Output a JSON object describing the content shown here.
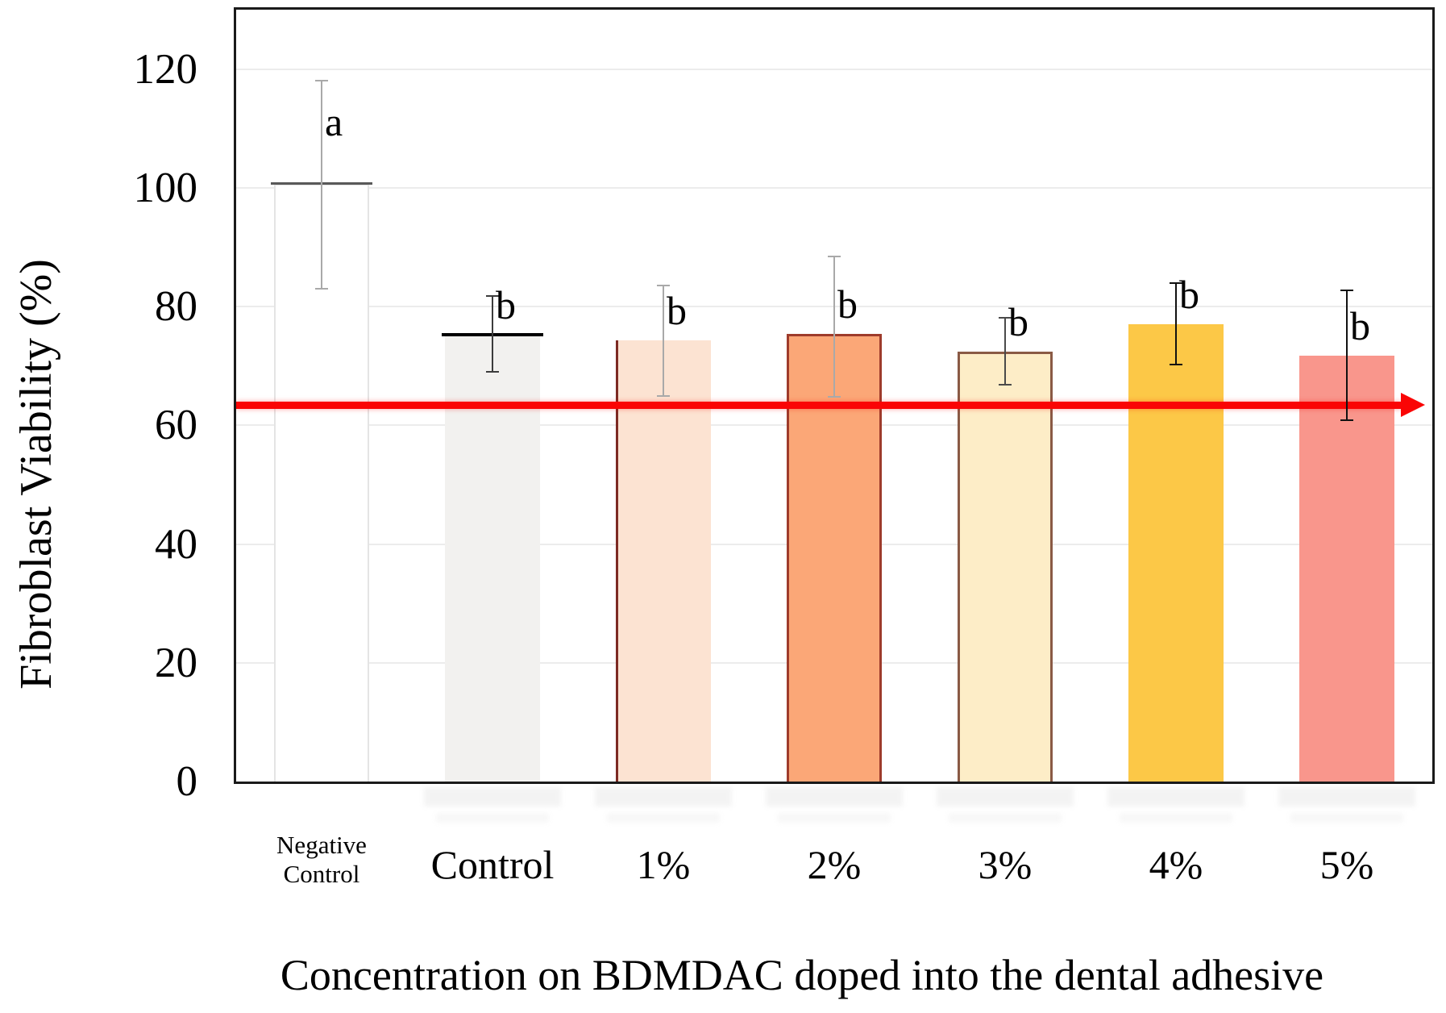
{
  "chart_data": {
    "type": "bar",
    "title": "",
    "ylabel": "Fibroblast Viability (%)",
    "xlabel": "Concentration on BDMDAC doped into the dental adhesive",
    "ylim": [
      0,
      130
    ],
    "yticks": [
      0,
      20,
      40,
      60,
      80,
      100,
      120
    ],
    "grid": "horizontal-light",
    "legend": "none",
    "reference_line": {
      "value": 63.5,
      "color": "#fa0505",
      "shape": "horizontal-arrow-right"
    },
    "categories": [
      "Negative Control",
      "Control",
      "1%",
      "2%",
      "3%",
      "4%",
      "5%"
    ],
    "bars": [
      {
        "category": "Negative Control",
        "label_lines": [
          "Negative",
          "Control"
        ],
        "small_label": true,
        "value": 100.6,
        "err_low": 83.0,
        "err_high": 118.0,
        "sig_letter": "a",
        "fill": "#ffffff",
        "outline": "#e4e4e4",
        "outline_style": "faint-full",
        "mean_marker_color": "#595959",
        "err_color": "#a9a9a9"
      },
      {
        "category": "Control",
        "label_lines": [
          "Control"
        ],
        "small_label": false,
        "value": 75.2,
        "err_low": 69.0,
        "err_high": 81.8,
        "sig_letter": "b",
        "fill": "#f2f1ef",
        "outline": null,
        "outline_style": "none",
        "mean_marker_color": "#000000",
        "err_color": "#3c3c3c"
      },
      {
        "category": "1%",
        "label_lines": [
          "1%"
        ],
        "small_label": false,
        "value": 74.3,
        "err_low": 65.0,
        "err_high": 83.5,
        "sig_letter": "b",
        "fill": "#fce3d2",
        "outline": "#7d2a23",
        "outline_style": "left",
        "mean_marker_color": null,
        "err_color": "#a9a9a9"
      },
      {
        "category": "2%",
        "label_lines": [
          "2%"
        ],
        "small_label": false,
        "value": 75.4,
        "err_low": 64.8,
        "err_high": 88.4,
        "sig_letter": "b",
        "fill": "#fba777",
        "outline": "#9e3b2b",
        "outline_style": "full",
        "mean_marker_color": null,
        "err_color": "#a9a9a9"
      },
      {
        "category": "3%",
        "label_lines": [
          "3%"
        ],
        "small_label": false,
        "value": 72.4,
        "err_low": 66.9,
        "err_high": 78.1,
        "sig_letter": "b",
        "fill": "#fdedc7",
        "outline": "#8a5a45",
        "outline_style": "full",
        "mean_marker_color": null,
        "err_color": "#4a4a4a"
      },
      {
        "category": "4%",
        "label_lines": [
          "4%"
        ],
        "small_label": false,
        "value": 77.0,
        "err_low": 70.2,
        "err_high": 84.0,
        "sig_letter": "b",
        "fill": "#fcc847",
        "outline": null,
        "outline_style": "none",
        "mean_marker_color": null,
        "err_color": "#111111"
      },
      {
        "category": "5%",
        "label_lines": [
          "5%"
        ],
        "small_label": false,
        "value": 71.7,
        "err_low": 60.8,
        "err_high": 82.7,
        "sig_letter": "b",
        "fill": "#f9968c",
        "outline": null,
        "outline_style": "none",
        "mean_marker_color": null,
        "err_color": "#111111"
      }
    ]
  }
}
